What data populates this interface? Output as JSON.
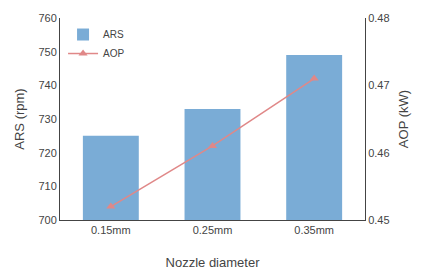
{
  "chart_data": {
    "type": "bar",
    "categories": [
      "0.15mm",
      "0.25mm",
      "0.35mm"
    ],
    "xlabel": "Nozzle diameter",
    "ylabel": "ARS (rpm)",
    "y2label": "AOP (kW)",
    "series": [
      {
        "name": "ARS",
        "type": "bar",
        "color": "#7aacd6",
        "values": [
          725,
          733,
          749
        ]
      },
      {
        "name": "AOP",
        "type": "line",
        "color": "#e08888",
        "marker": "triangle",
        "line_style": "solid",
        "axis": "y2",
        "values": [
          0.452,
          0.461,
          0.471
        ]
      }
    ],
    "ylim": [
      700,
      760
    ],
    "yticks": [
      700,
      710,
      720,
      730,
      740,
      750,
      760
    ],
    "y2lim": [
      0.45,
      0.48
    ],
    "y2ticks": [
      0.45,
      0.46,
      0.47,
      0.48
    ],
    "legend": "upper left",
    "grid": false
  }
}
